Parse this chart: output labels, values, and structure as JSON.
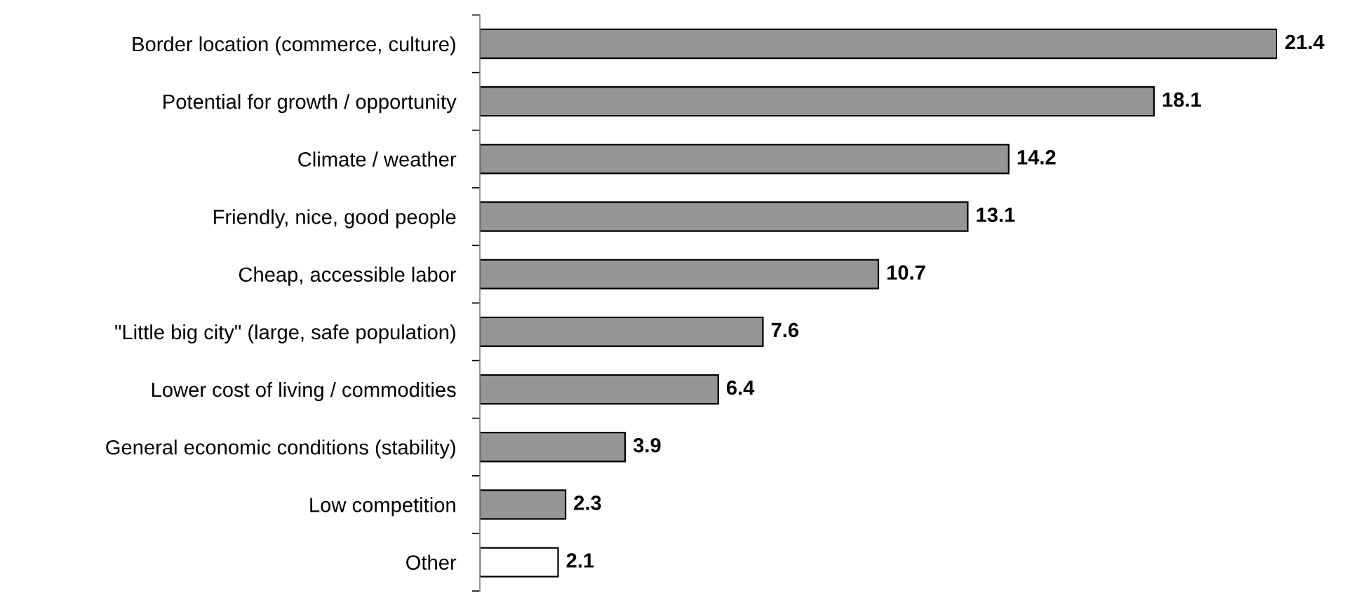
{
  "chart_data": {
    "type": "bar",
    "orientation": "horizontal",
    "categories": [
      "Border location (commerce, culture)",
      "Potential for growth / opportunity",
      "Climate / weather",
      "Friendly, nice, good people",
      "Cheap, accessible labor",
      "\"Little big city\" (large, safe population)",
      "Lower cost of living / commodities",
      "General economic conditions (stability)",
      "Low competition",
      "Other"
    ],
    "values": [
      21.4,
      18.1,
      14.2,
      13.1,
      10.7,
      7.6,
      6.4,
      3.9,
      2.3,
      2.1
    ],
    "colors": [
      "#969696",
      "#969696",
      "#969696",
      "#969696",
      "#969696",
      "#969696",
      "#969696",
      "#969696",
      "#969696",
      "#ffffff"
    ],
    "data_labels": true,
    "grid": false,
    "legend": false
  }
}
